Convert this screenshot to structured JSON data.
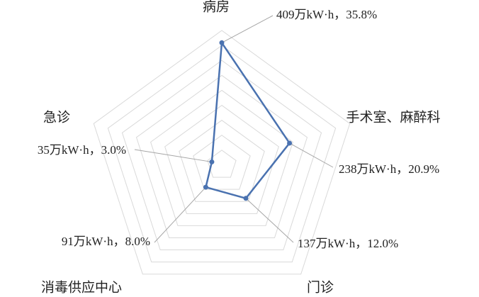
{
  "chart_data": {
    "type": "radar",
    "categories": [
      "病房",
      "手术室、麻醉科",
      "门诊",
      "消毒供应中心",
      "急诊"
    ],
    "values": [
      409,
      238,
      137,
      91,
      35
    ],
    "value_labels": [
      "409万kW·h，35.8%",
      "238万kW·h，20.9%",
      "137万kW·h，12.0%",
      "91万kW·h，8.0%",
      "35万kW·h，3.0%"
    ],
    "color": "#4a72b0",
    "rlim": [
      0,
      450
    ],
    "rticks": [
      0,
      50,
      100,
      150,
      200,
      250,
      300,
      350,
      400,
      450
    ],
    "grid": true
  }
}
